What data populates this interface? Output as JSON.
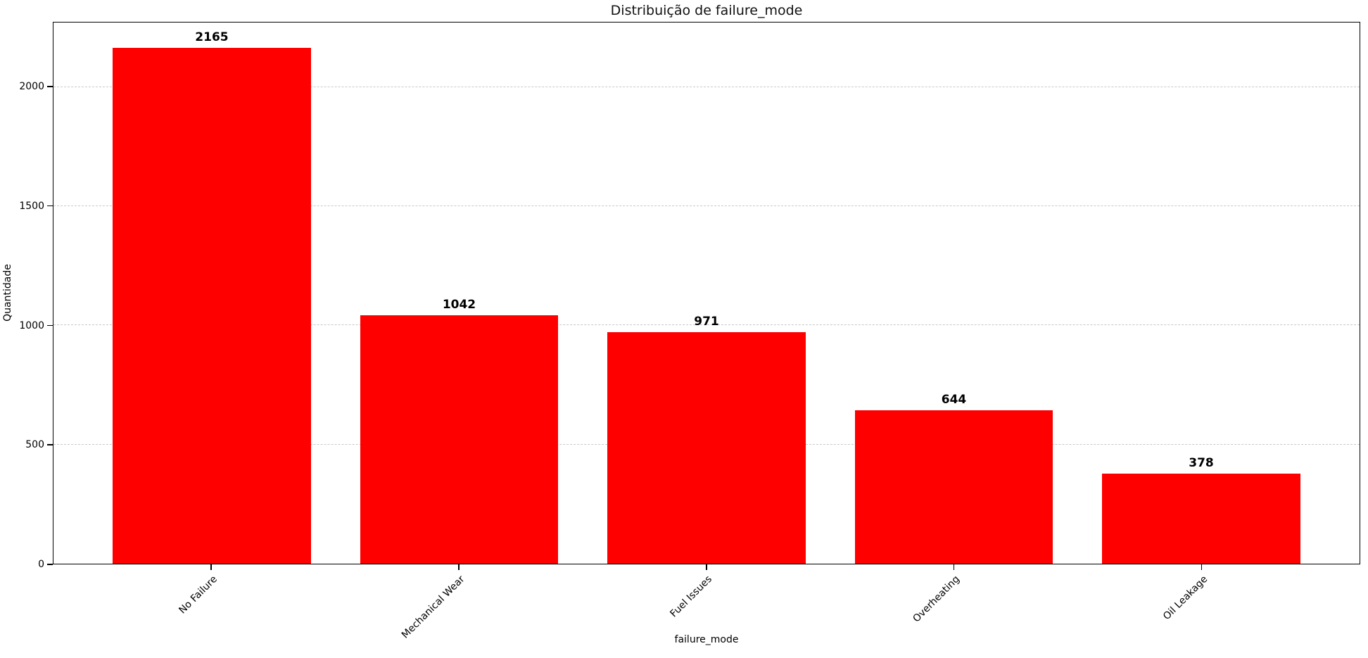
{
  "chart_data": {
    "type": "bar",
    "title": "Distribuição de failure_mode",
    "xlabel": "failure_mode",
    "ylabel": "Quantidade",
    "categories": [
      "No Failure",
      "Mechanical Wear",
      "Fuel Issues",
      "Overheating",
      "Oil Leakage"
    ],
    "values": [
      2165,
      1042,
      971,
      644,
      378
    ],
    "bar_value_labels": [
      "2165",
      "1042",
      "971",
      "644",
      "378"
    ],
    "yticks": [
      0,
      500,
      1000,
      1500,
      2000
    ],
    "ylim": [
      0,
      2271
    ],
    "bar_color": "#ff0000",
    "grid": "horizontal dashed",
    "gridline_color": "#c9c9c9",
    "xtick_rotation_deg": 45,
    "legend": "none"
  }
}
